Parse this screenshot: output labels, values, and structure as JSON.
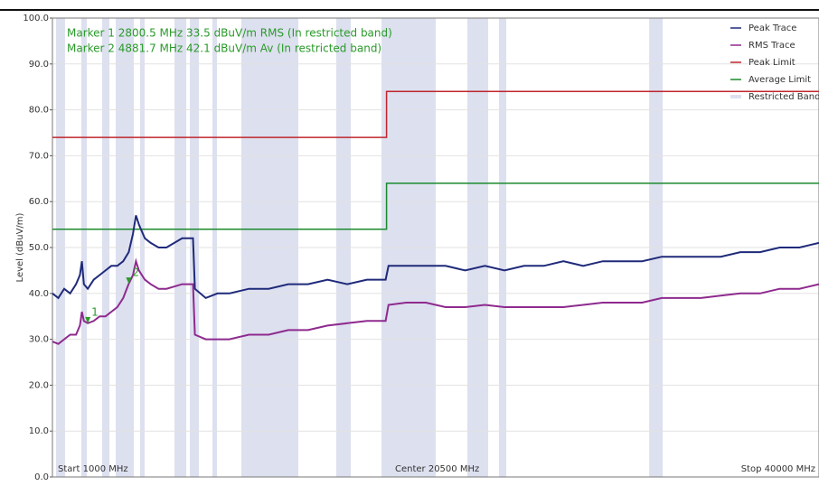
{
  "chart_data": {
    "type": "line",
    "y_label": "Level (dBuV/m)",
    "xlim": [
      1000,
      40000
    ],
    "ylim": [
      0,
      100
    ],
    "yticks": [
      {
        "value": 0,
        "label": "0.0"
      },
      {
        "value": 10,
        "label": "10.0"
      },
      {
        "value": 20,
        "label": "20.0"
      },
      {
        "value": 30,
        "label": "30.0"
      },
      {
        "value": 40,
        "label": "40.0"
      },
      {
        "value": 50,
        "label": "50.0"
      },
      {
        "value": 60,
        "label": "60.0"
      },
      {
        "value": 70,
        "label": "70.0"
      },
      {
        "value": 80,
        "label": "80.0"
      },
      {
        "value": 90,
        "label": "90.0"
      },
      {
        "value": 100,
        "label": "100.0"
      }
    ],
    "grid": true,
    "x_labels": [
      "Start 1000 MHz",
      "Center 20500 MHz",
      "Stop 40000 MHz"
    ],
    "x": [
      1000,
      1300,
      1600,
      1900,
      2200,
      2400,
      2500,
      2600,
      2800,
      3100,
      3400,
      3700,
      4000,
      4300,
      4600,
      4881.7,
      5100,
      5250,
      5400,
      5700,
      6000,
      6400,
      6800,
      7200,
      7600,
      8000,
      8150,
      8250,
      8800,
      9400,
      10000,
      11000,
      12000,
      13000,
      14000,
      15000,
      16000,
      17000,
      17950,
      18100,
      19000,
      20000,
      21000,
      22000,
      23000,
      24000,
      25000,
      26000,
      27000,
      28000,
      29000,
      30000,
      31000,
      32000,
      33000,
      34000,
      35000,
      36000,
      37000,
      38000,
      39000,
      40000
    ],
    "series": [
      {
        "name": "Peak Trace",
        "color": "#1f2a7a",
        "values": [
          40,
          39,
          41,
          40,
          42,
          44,
          47,
          42,
          41,
          43,
          44,
          45,
          46,
          46,
          47,
          49,
          53,
          57,
          55,
          52,
          51,
          50,
          50,
          51,
          52,
          52,
          52,
          41,
          39,
          40,
          40,
          41,
          41,
          42,
          42,
          43,
          42,
          43,
          43,
          46,
          46,
          46,
          46,
          45,
          46,
          45,
          46,
          46,
          47,
          46,
          47,
          47,
          47,
          48,
          48,
          48,
          48,
          49,
          49,
          50,
          50,
          51
        ]
      },
      {
        "name": "RMS Trace",
        "color": "#8e2a8e",
        "values": [
          29.5,
          29,
          30,
          31,
          31,
          33,
          36,
          34,
          33.5,
          34,
          35,
          35,
          36,
          37,
          39,
          42.1,
          44,
          47,
          45,
          43,
          42,
          41,
          41,
          41.5,
          42,
          42,
          42,
          31,
          30,
          30,
          30,
          31,
          31,
          32,
          32,
          33,
          33.5,
          34,
          34,
          37.5,
          38,
          38,
          37,
          37,
          37.5,
          37,
          37,
          37,
          37,
          37.5,
          38,
          38,
          38,
          39,
          39,
          39,
          39.5,
          40,
          40,
          41,
          41,
          42
        ]
      }
    ],
    "limits": [
      {
        "name": "Peak Limit",
        "color": "#c0262c",
        "x": [
          1000,
          18000,
          18000,
          40000
        ],
        "values": [
          74,
          74,
          84,
          84
        ]
      },
      {
        "name": "Average Limit",
        "color": "#1a8a2e",
        "x": [
          1000,
          18000,
          18000,
          40000
        ],
        "values": [
          54,
          54,
          64,
          64
        ]
      }
    ],
    "restricted_bands": {
      "name": "Restricted Bands",
      "color": "#dde0ef",
      "ranges": [
        [
          1180,
          1640
        ],
        [
          2470,
          2750
        ],
        [
          3530,
          3900
        ],
        [
          4220,
          5140
        ],
        [
          5460,
          5690
        ],
        [
          7210,
          7810
        ],
        [
          7990,
          8450
        ],
        [
          9140,
          9370
        ],
        [
          10610,
          13510
        ],
        [
          15440,
          16180
        ],
        [
          17740,
          18110
        ],
        [
          18110,
          20500
        ],
        [
          22110,
          23170
        ],
        [
          23720,
          24090
        ],
        [
          31360,
          32050
        ]
      ]
    },
    "markers": [
      {
        "label": "1",
        "x": 2800.5,
        "value": 33.5,
        "text": "Marker 1 2800.5 MHz 33.5 dBuV/m RMS (In restricted band)"
      },
      {
        "label": "2",
        "x": 4881.7,
        "value": 42.1,
        "text": "Marker 2 4881.7 MHz 42.1 dBuV/m Av (In restricted band)"
      }
    ],
    "legend": "top-right"
  }
}
